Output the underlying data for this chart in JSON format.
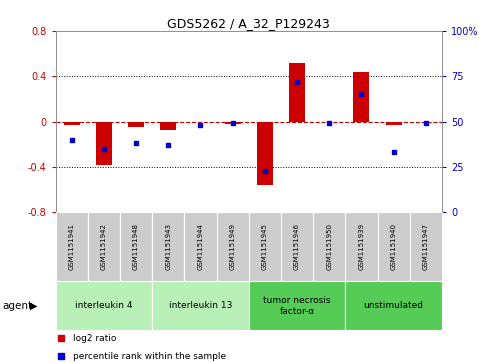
{
  "title": "GDS5262 / A_32_P129243",
  "samples": [
    "GSM1151941",
    "GSM1151942",
    "GSM1151948",
    "GSM1151943",
    "GSM1151944",
    "GSM1151949",
    "GSM1151945",
    "GSM1151946",
    "GSM1151950",
    "GSM1151939",
    "GSM1151940",
    "GSM1151947"
  ],
  "log2_ratios": [
    -0.03,
    -0.38,
    -0.05,
    -0.07,
    0.0,
    -0.02,
    -0.56,
    0.52,
    0.0,
    0.44,
    -0.03,
    0.0
  ],
  "percentile_ranks": [
    40,
    35,
    38,
    37,
    48,
    49,
    23,
    72,
    49,
    65,
    33,
    49
  ],
  "agents": [
    {
      "label": "interleukin 4",
      "start": 0,
      "end": 2,
      "color": "#b8f0b8"
    },
    {
      "label": "interleukin 13",
      "start": 3,
      "end": 5,
      "color": "#b8f0b8"
    },
    {
      "label": "tumor necrosis\nfactor-α",
      "start": 6,
      "end": 8,
      "color": "#55cc55"
    },
    {
      "label": "unstimulated",
      "start": 9,
      "end": 11,
      "color": "#55cc55"
    }
  ],
  "ylim": [
    -0.8,
    0.8
  ],
  "y2lim": [
    0,
    100
  ],
  "yticks": [
    -0.8,
    -0.4,
    0.0,
    0.4,
    0.8
  ],
  "y2ticks": [
    0,
    25,
    50,
    75,
    100
  ],
  "bar_color": "#cc0000",
  "dot_color": "#0000cc",
  "ref_line_color": "#cc0000",
  "grid_color": "#000000",
  "background_color": "#ffffff",
  "sample_box_color": "#cccccc",
  "legend_items": [
    "log2 ratio",
    "percentile rank within the sample"
  ],
  "agent_label": "agent"
}
